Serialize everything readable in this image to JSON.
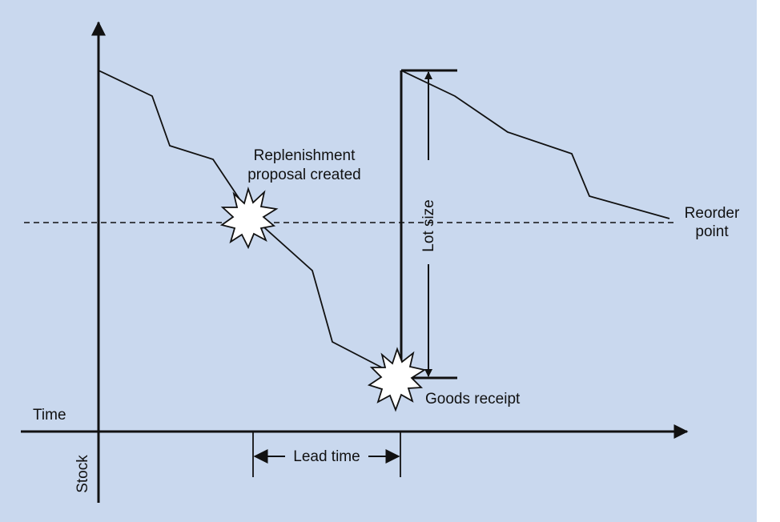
{
  "diagram": {
    "colors": {
      "background": "#c9d8ee",
      "ink": "#111111",
      "burst_fill": "#ffffff"
    },
    "labels": {
      "replenishment_line1": "Replenishment",
      "replenishment_line2": "proposal created",
      "reorder_line1": "Reorder",
      "reorder_line2": "point",
      "lot_size": "Lot size",
      "goods_receipt": "Goods receipt",
      "time": "Time",
      "lead_time": "Lead time",
      "stock": "Stock"
    }
  }
}
